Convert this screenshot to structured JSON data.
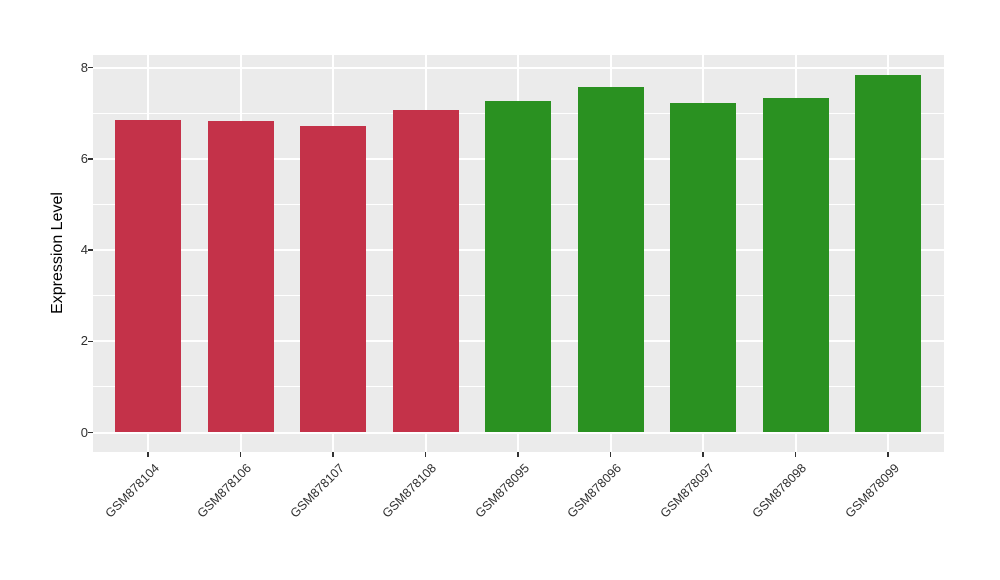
{
  "chart_data": {
    "type": "bar",
    "title": "",
    "xlabel": "",
    "ylabel": "Expression Level",
    "categories": [
      "GSM878104",
      "GSM878106",
      "GSM878107",
      "GSM878108",
      "GSM878095",
      "GSM878096",
      "GSM878097",
      "GSM878098",
      "GSM878099"
    ],
    "values": [
      6.85,
      6.83,
      6.72,
      7.07,
      7.28,
      7.58,
      7.22,
      7.34,
      7.85
    ],
    "groups": [
      "red",
      "red",
      "red",
      "red",
      "green",
      "green",
      "green",
      "green",
      "green"
    ],
    "group_colors": {
      "red": "#C43249",
      "green": "#2A9121"
    },
    "ylim": [
      -0.43,
      8.28
    ],
    "yticks": [
      0,
      2,
      4,
      6,
      8
    ],
    "yticks_minor": [
      1,
      3,
      5,
      7
    ],
    "grid": true,
    "legend": "none",
    "x_label_rotation_deg": 45,
    "panel_background": "#EBEBEB",
    "gridline_color": "#FFFFFF",
    "axis_text_color": "#303030",
    "tick_mark_color": "#333333"
  }
}
